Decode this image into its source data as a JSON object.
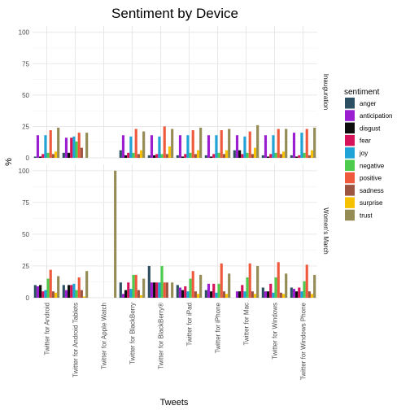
{
  "chart_data": {
    "type": "bar",
    "title": "Sentiment by Device",
    "xlabel": "Tweets",
    "ylabel": "%",
    "ylim": [
      0,
      105
    ],
    "y_ticks": [
      0,
      25,
      50,
      75,
      100
    ],
    "grid": true,
    "legend_position": "right",
    "legend_title": "sentiment",
    "categories": [
      "Twitter for Android",
      "Twitter for Android Tablets",
      "Twitter for Apple Watch",
      "Twitter for BlackBerry",
      "Twitter for BlackBerry®",
      "Twitter for iPad",
      "Twitter for iPhone",
      "Twitter for Mac",
      "Twitter for Windows",
      "Twitter for Windows Phone"
    ],
    "sentiments": [
      {
        "name": "anger",
        "color": "#2c4f61"
      },
      {
        "name": "anticipation",
        "color": "#9b1fd1"
      },
      {
        "name": "disgust",
        "color": "#0d0d0d"
      },
      {
        "name": "fear",
        "color": "#d6125a"
      },
      {
        "name": "joy",
        "color": "#20a3d6"
      },
      {
        "name": "negative",
        "color": "#4ccb4c"
      },
      {
        "name": "positive",
        "color": "#ef5a3c"
      },
      {
        "name": "sadness",
        "color": "#9b5540"
      },
      {
        "name": "surprise",
        "color": "#f5c100"
      },
      {
        "name": "trust",
        "color": "#958b55"
      }
    ],
    "panels": [
      {
        "label": "Inauguration",
        "series": [
          {
            "name": "anger",
            "values": [
              1,
              4,
              null,
              6,
              2,
              2,
              2,
              6,
              2,
              2
            ]
          },
          {
            "name": "anticipation",
            "values": [
              18,
              16,
              null,
              18,
              18,
              18,
              18,
              18,
              18,
              20
            ]
          },
          {
            "name": "disgust",
            "values": [
              1,
              4,
              null,
              2,
              2,
              1,
              1,
              6,
              1,
              1
            ]
          },
          {
            "name": "fear",
            "values": [
              3,
              16,
              null,
              4,
              3,
              3,
              3,
              3,
              3,
              2
            ]
          },
          {
            "name": "joy",
            "values": [
              18,
              17,
              null,
              17,
              17,
              18,
              18,
              17,
              18,
              20
            ]
          },
          {
            "name": "negative",
            "values": [
              4,
              13,
              null,
              4,
              3,
              4,
              4,
              4,
              4,
              4
            ]
          },
          {
            "name": "positive",
            "values": [
              22,
              20,
              null,
              23,
              25,
              22,
              22,
              21,
              23,
              23
            ]
          },
          {
            "name": "sadness",
            "values": [
              3,
              8,
              null,
              3,
              3,
              3,
              3,
              3,
              3,
              2
            ]
          },
          {
            "name": "surprise",
            "values": [
              5,
              0,
              null,
              6,
              9,
              6,
              6,
              8,
              5,
              6
            ]
          },
          {
            "name": "trust",
            "values": [
              24,
              20,
              null,
              21,
              23,
              24,
              23,
              26,
              23,
              24
            ]
          }
        ]
      },
      {
        "label": "Women's March",
        "series": [
          {
            "name": "anger",
            "values": [
              10,
              10,
              0,
              12,
              25,
              10,
              6,
              0,
              8,
              8
            ]
          },
          {
            "name": "anticipation",
            "values": [
              9,
              6,
              0,
              3,
              12,
              8,
              11,
              5,
              5,
              7
            ]
          },
          {
            "name": "disgust",
            "values": [
              10,
              10,
              0,
              6,
              12,
              6,
              5,
              5,
              5,
              5
            ]
          },
          {
            "name": "fear",
            "values": [
              5,
              10,
              0,
              12,
              12,
              9,
              11,
              10,
              11,
              8
            ]
          },
          {
            "name": "joy",
            "values": [
              6,
              11,
              0,
              7,
              12,
              5,
              4,
              5,
              4,
              5
            ]
          },
          {
            "name": "negative",
            "values": [
              15,
              6,
              0,
              18,
              25,
              15,
              11,
              16,
              16,
              13
            ]
          },
          {
            "name": "positive",
            "values": [
              22,
              16,
              0,
              18,
              12,
              21,
              27,
              27,
              28,
              26
            ]
          },
          {
            "name": "sadness",
            "values": [
              5,
              6,
              0,
              6,
              12,
              5,
              5,
              5,
              4,
              5
            ]
          },
          {
            "name": "surprise",
            "values": [
              4,
              1,
              0,
              2,
              0,
              3,
              3,
              3,
              3,
              3
            ]
          },
          {
            "name": "trust",
            "values": [
              17,
              21,
              100,
              15,
              12,
              18,
              19,
              25,
              19,
              18
            ]
          }
        ]
      }
    ]
  }
}
